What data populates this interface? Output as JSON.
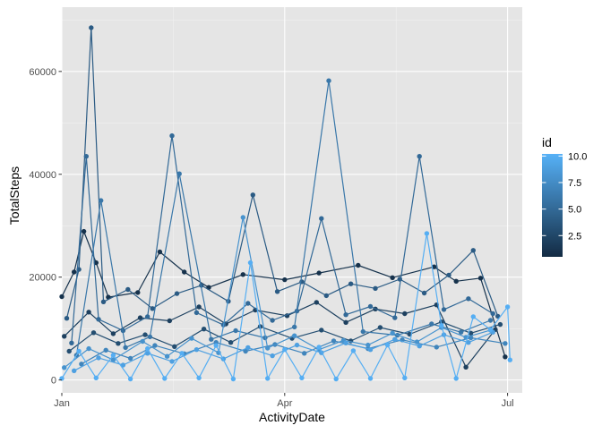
{
  "chart_data": {
    "type": "line",
    "x_type": "date",
    "xlabel": "ActivityDate",
    "ylabel": "TotalSteps",
    "x_range": [
      "2016-01-01",
      "2016-07-07"
    ],
    "ylim": [
      -2500,
      72500
    ],
    "x_ticks": [
      {
        "date": "2016-01-01",
        "label": "Jan"
      },
      {
        "date": "2016-04-01",
        "label": "Apr"
      },
      {
        "date": "2016-07-01",
        "label": "Jul"
      }
    ],
    "y_ticks": [
      {
        "value": 0,
        "label": "0"
      },
      {
        "value": 20000,
        "label": "20000"
      },
      {
        "value": 40000,
        "label": "40000"
      },
      {
        "value": 60000,
        "label": "60000"
      }
    ],
    "grid": true,
    "background": "#e5e5e5",
    "color_scale": {
      "variable": "id",
      "low_color": "#132b43",
      "high_color": "#56b1f7",
      "range": [
        0.5,
        10.2
      ],
      "breaks": [
        2.5,
        5.0,
        7.5,
        10.0
      ],
      "break_labels": [
        "2.5",
        "5.0",
        "7.5",
        "10.0"
      ]
    },
    "legend": {
      "title": "id",
      "position": "right"
    },
    "series": [
      {
        "id": 1,
        "points": [
          [
            "2016-01-01",
            16200
          ],
          [
            "2016-01-06",
            21000
          ],
          [
            "2016-01-10",
            28900
          ],
          [
            "2016-01-15",
            22800
          ],
          [
            "2016-01-20",
            16100
          ],
          [
            "2016-02-01",
            17000
          ],
          [
            "2016-02-10",
            24900
          ],
          [
            "2016-02-20",
            21000
          ],
          [
            "2016-03-01",
            18000
          ],
          [
            "2016-03-15",
            20500
          ],
          [
            "2016-04-01",
            19500
          ],
          [
            "2016-04-15",
            20800
          ],
          [
            "2016-05-01",
            22300
          ],
          [
            "2016-05-15",
            19900
          ],
          [
            "2016-06-01",
            22000
          ],
          [
            "2016-06-10",
            19200
          ],
          [
            "2016-06-20",
            19800
          ],
          [
            "2016-06-30",
            4500
          ]
        ]
      },
      {
        "id": 2,
        "points": [
          [
            "2016-01-02",
            8500
          ],
          [
            "2016-01-12",
            13200
          ],
          [
            "2016-01-22",
            9000
          ],
          [
            "2016-02-02",
            12100
          ],
          [
            "2016-02-14",
            11500
          ],
          [
            "2016-02-26",
            14200
          ],
          [
            "2016-03-08",
            10900
          ],
          [
            "2016-03-20",
            13600
          ],
          [
            "2016-04-02",
            12500
          ],
          [
            "2016-04-14",
            15100
          ],
          [
            "2016-04-26",
            11200
          ],
          [
            "2016-05-08",
            13800
          ],
          [
            "2016-05-20",
            12900
          ],
          [
            "2016-06-02",
            14600
          ],
          [
            "2016-06-14",
            2500
          ],
          [
            "2016-06-26",
            9800
          ]
        ]
      },
      {
        "id": 3,
        "points": [
          [
            "2016-01-04",
            5600
          ],
          [
            "2016-01-14",
            9200
          ],
          [
            "2016-01-24",
            7100
          ],
          [
            "2016-02-04",
            8800
          ],
          [
            "2016-02-16",
            6500
          ],
          [
            "2016-02-28",
            9900
          ],
          [
            "2016-03-10",
            7300
          ],
          [
            "2016-03-22",
            10400
          ],
          [
            "2016-04-04",
            8100
          ],
          [
            "2016-04-16",
            9700
          ],
          [
            "2016-04-28",
            7600
          ],
          [
            "2016-05-10",
            10200
          ],
          [
            "2016-05-22",
            8900
          ],
          [
            "2016-06-04",
            11300
          ],
          [
            "2016-06-16",
            9100
          ],
          [
            "2016-06-28",
            10800
          ]
        ]
      },
      {
        "id": 4,
        "points": [
          [
            "2016-01-03",
            12000
          ],
          [
            "2016-01-08",
            21500
          ],
          [
            "2016-01-13",
            68500
          ],
          [
            "2016-01-18",
            15200
          ],
          [
            "2016-01-28",
            17600
          ],
          [
            "2016-02-07",
            13900
          ],
          [
            "2016-02-17",
            16800
          ],
          [
            "2016-02-27",
            18400
          ],
          [
            "2016-03-09",
            15300
          ],
          [
            "2016-03-19",
            36000
          ],
          [
            "2016-03-29",
            17200
          ],
          [
            "2016-04-08",
            19100
          ],
          [
            "2016-04-18",
            16400
          ],
          [
            "2016-04-28",
            18700
          ],
          [
            "2016-05-08",
            17800
          ],
          [
            "2016-05-18",
            19600
          ],
          [
            "2016-05-28",
            16900
          ],
          [
            "2016-06-07",
            20400
          ],
          [
            "2016-06-17",
            25200
          ],
          [
            "2016-06-27",
            12400
          ]
        ]
      },
      {
        "id": 5,
        "points": [
          [
            "2016-01-05",
            7200
          ],
          [
            "2016-01-11",
            43500
          ],
          [
            "2016-01-16",
            11800
          ],
          [
            "2016-01-26",
            9600
          ],
          [
            "2016-02-05",
            12300
          ],
          [
            "2016-02-15",
            47500
          ],
          [
            "2016-02-25",
            13100
          ],
          [
            "2016-03-07",
            10700
          ],
          [
            "2016-03-17",
            14900
          ],
          [
            "2016-03-27",
            11600
          ],
          [
            "2016-04-06",
            13400
          ],
          [
            "2016-04-16",
            31400
          ],
          [
            "2016-04-26",
            12700
          ],
          [
            "2016-05-06",
            14300
          ],
          [
            "2016-05-16",
            12100
          ],
          [
            "2016-05-26",
            43500
          ],
          [
            "2016-06-05",
            13700
          ],
          [
            "2016-06-15",
            15800
          ],
          [
            "2016-06-25",
            12900
          ]
        ]
      },
      {
        "id": 6,
        "points": [
          [
            "2016-01-07",
            4800
          ],
          [
            "2016-01-17",
            34900
          ],
          [
            "2016-01-27",
            6300
          ],
          [
            "2016-02-06",
            8400
          ],
          [
            "2016-02-18",
            40100
          ],
          [
            "2016-03-02",
            7900
          ],
          [
            "2016-03-12",
            9600
          ],
          [
            "2016-03-24",
            8200
          ],
          [
            "2016-04-05",
            10300
          ],
          [
            "2016-04-19",
            58200
          ],
          [
            "2016-05-03",
            9400
          ],
          [
            "2016-05-17",
            8700
          ],
          [
            "2016-05-31",
            10900
          ],
          [
            "2016-06-12",
            9300
          ],
          [
            "2016-06-24",
            11600
          ]
        ]
      },
      {
        "id": 7,
        "points": [
          [
            "2016-01-09",
            3100
          ],
          [
            "2016-01-19",
            5800
          ],
          [
            "2016-01-29",
            4200
          ],
          [
            "2016-02-08",
            6700
          ],
          [
            "2016-02-20",
            5100
          ],
          [
            "2016-03-04",
            7300
          ],
          [
            "2016-03-16",
            5600
          ],
          [
            "2016-03-28",
            6900
          ],
          [
            "2016-04-09",
            5200
          ],
          [
            "2016-04-21",
            7600
          ],
          [
            "2016-05-05",
            6100
          ],
          [
            "2016-05-19",
            7800
          ],
          [
            "2016-06-02",
            6400
          ],
          [
            "2016-06-16",
            8200
          ],
          [
            "2016-06-30",
            7100
          ]
        ]
      },
      {
        "id": 8,
        "points": [
          [
            "2016-01-02",
            2400
          ],
          [
            "2016-01-12",
            6100
          ],
          [
            "2016-01-22",
            3900
          ],
          [
            "2016-02-03",
            7500
          ],
          [
            "2016-02-13",
            4600
          ],
          [
            "2016-02-23",
            8100
          ],
          [
            "2016-03-05",
            5300
          ],
          [
            "2016-03-15",
            31600
          ],
          [
            "2016-03-25",
            6200
          ],
          [
            "2016-04-05",
            8600
          ],
          [
            "2016-04-15",
            5900
          ],
          [
            "2016-04-25",
            7700
          ],
          [
            "2016-05-05",
            6800
          ],
          [
            "2016-05-15",
            9100
          ],
          [
            "2016-05-25",
            7400
          ],
          [
            "2016-06-04",
            10200
          ],
          [
            "2016-06-14",
            8300
          ],
          [
            "2016-06-24",
            9700
          ]
        ]
      },
      {
        "id": 9,
        "points": [
          [
            "2016-01-06",
            1800
          ],
          [
            "2016-01-16",
            4300
          ],
          [
            "2016-01-26",
            2900
          ],
          [
            "2016-02-05",
            5200
          ],
          [
            "2016-02-15",
            3600
          ],
          [
            "2016-02-25",
            5900
          ],
          [
            "2016-03-07",
            4100
          ],
          [
            "2016-03-17",
            6300
          ],
          [
            "2016-03-27",
            4700
          ],
          [
            "2016-04-06",
            6800
          ],
          [
            "2016-04-16",
            5300
          ],
          [
            "2016-04-26",
            7200
          ],
          [
            "2016-05-06",
            5900
          ],
          [
            "2016-05-16",
            7900
          ],
          [
            "2016-05-26",
            6600
          ],
          [
            "2016-06-05",
            8800
          ],
          [
            "2016-06-15",
            7300
          ],
          [
            "2016-06-25",
            9300
          ]
        ]
      },
      {
        "id": 10,
        "points": [
          [
            "2016-01-01",
            300
          ],
          [
            "2016-01-08",
            5600
          ],
          [
            "2016-01-15",
            400
          ],
          [
            "2016-01-22",
            4800
          ],
          [
            "2016-01-29",
            200
          ],
          [
            "2016-02-05",
            6100
          ],
          [
            "2016-02-12",
            300
          ],
          [
            "2016-02-19",
            5200
          ],
          [
            "2016-02-26",
            400
          ],
          [
            "2016-03-04",
            6700
          ],
          [
            "2016-03-11",
            200
          ],
          [
            "2016-03-18",
            22800
          ],
          [
            "2016-03-25",
            300
          ],
          [
            "2016-04-01",
            5900
          ],
          [
            "2016-04-08",
            400
          ],
          [
            "2016-04-15",
            6400
          ],
          [
            "2016-04-22",
            200
          ],
          [
            "2016-04-29",
            5700
          ],
          [
            "2016-05-06",
            300
          ],
          [
            "2016-05-13",
            6800
          ],
          [
            "2016-05-20",
            400
          ],
          [
            "2016-05-29",
            28500
          ],
          [
            "2016-06-04",
            10600
          ],
          [
            "2016-06-10",
            300
          ],
          [
            "2016-06-17",
            12300
          ],
          [
            "2016-06-24",
            9800
          ],
          [
            "2016-07-01",
            14200
          ],
          [
            "2016-07-02",
            3900
          ]
        ]
      }
    ]
  }
}
